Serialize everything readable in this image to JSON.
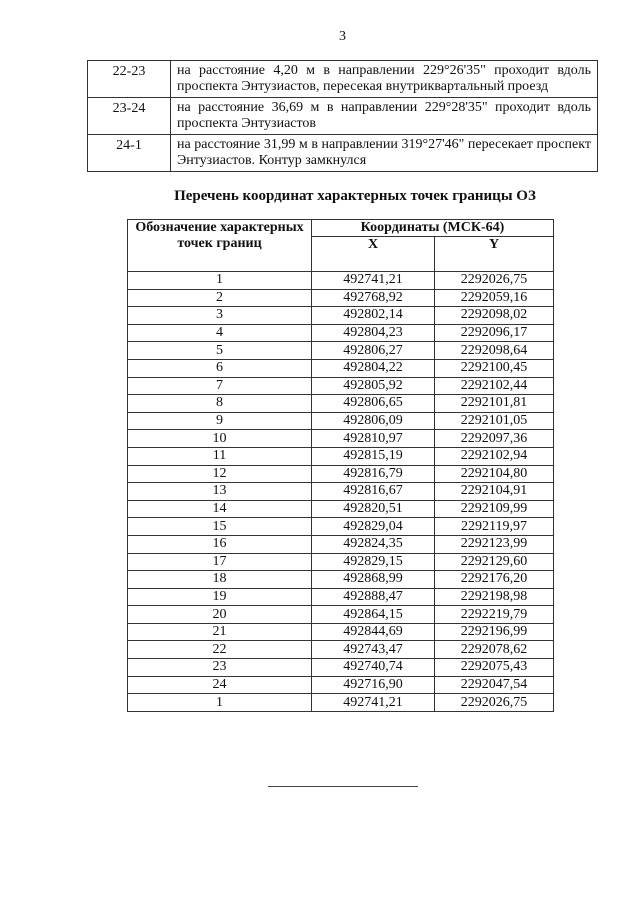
{
  "page_number": "3",
  "segments_table": [
    {
      "segment": "22-23",
      "description": "на расстояние 4,20 м в направлении 229°26'35\" проходит вдоль проспекта Энтузиастов, пересекая внутриквартальный проезд"
    },
    {
      "segment": "23-24",
      "description": "на расстояние 36,69 м в направлении 229°28'35\" проходит вдоль проспекта Энтузиастов"
    },
    {
      "segment": "24-1",
      "description": "на расстояние 31,99 м в направлении 319°27'46\" пересекает проспект Энтузиастов. Контур замкнулся"
    }
  ],
  "coords_title": "Перечень координат характерных точек границы ОЗ",
  "coords_table": {
    "header": {
      "point": "Обозначение характерных точек границ",
      "coords": "Координаты (МСК-64)",
      "x": "X",
      "y": "Y"
    },
    "rows": [
      {
        "p": "1",
        "x": "492741,21",
        "y": "2292026,75"
      },
      {
        "p": "2",
        "x": "492768,92",
        "y": "2292059,16"
      },
      {
        "p": "3",
        "x": "492802,14",
        "y": "2292098,02"
      },
      {
        "p": "4",
        "x": "492804,23",
        "y": "2292096,17"
      },
      {
        "p": "5",
        "x": "492806,27",
        "y": "2292098,64"
      },
      {
        "p": "6",
        "x": "492804,22",
        "y": "2292100,45"
      },
      {
        "p": "7",
        "x": "492805,92",
        "y": "2292102,44"
      },
      {
        "p": "8",
        "x": "492806,65",
        "y": "2292101,81"
      },
      {
        "p": "9",
        "x": "492806,09",
        "y": "2292101,05"
      },
      {
        "p": "10",
        "x": "492810,97",
        "y": "2292097,36"
      },
      {
        "p": "11",
        "x": "492815,19",
        "y": "2292102,94"
      },
      {
        "p": "12",
        "x": "492816,79",
        "y": "2292104,80"
      },
      {
        "p": "13",
        "x": "492816,67",
        "y": "2292104,91"
      },
      {
        "p": "14",
        "x": "492820,51",
        "y": "2292109,99"
      },
      {
        "p": "15",
        "x": "492829,04",
        "y": "2292119,97"
      },
      {
        "p": "16",
        "x": "492824,35",
        "y": "2292123,99"
      },
      {
        "p": "17",
        "x": "492829,15",
        "y": "2292129,60"
      },
      {
        "p": "18",
        "x": "492868,99",
        "y": "2292176,20"
      },
      {
        "p": "19",
        "x": "492888,47",
        "y": "2292198,98"
      },
      {
        "p": "20",
        "x": "492864,15",
        "y": "2292219,79"
      },
      {
        "p": "21",
        "x": "492844,69",
        "y": "2292196,99"
      },
      {
        "p": "22",
        "x": "492743,47",
        "y": "2292078,62"
      },
      {
        "p": "23",
        "x": "492740,74",
        "y": "2292075,43"
      },
      {
        "p": "24",
        "x": "492716,90",
        "y": "2292047,54"
      },
      {
        "p": "1",
        "x": "492741,21",
        "y": "2292026,75"
      }
    ]
  }
}
